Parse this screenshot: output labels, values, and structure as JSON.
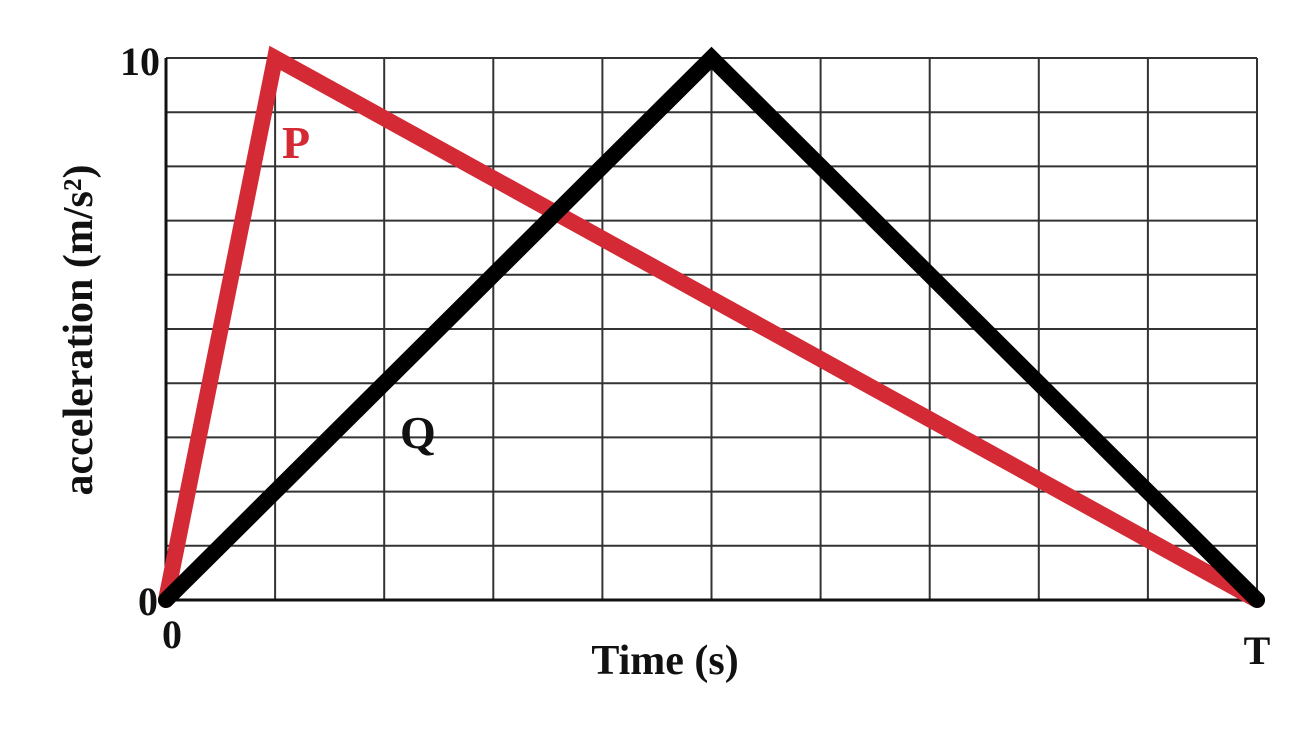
{
  "chart_data": {
    "type": "line",
    "title": "",
    "xlabel": "Time (s)",
    "ylabel": "acceleration (m/s²)",
    "xlim": [
      0,
      10
    ],
    "ylim": [
      0,
      10
    ],
    "grid": true,
    "x_tick_labels": {
      "start": "0",
      "end": "T"
    },
    "y_tick_labels": {
      "bottom": "0",
      "top": "10"
    },
    "series": [
      {
        "name": "P",
        "color": "#d42a35",
        "points": [
          [
            0,
            0
          ],
          [
            1,
            10
          ],
          [
            10,
            0
          ]
        ]
      },
      {
        "name": "Q",
        "color": "#000000",
        "points": [
          [
            0,
            0
          ],
          [
            5,
            10
          ],
          [
            10,
            0
          ]
        ]
      }
    ]
  }
}
